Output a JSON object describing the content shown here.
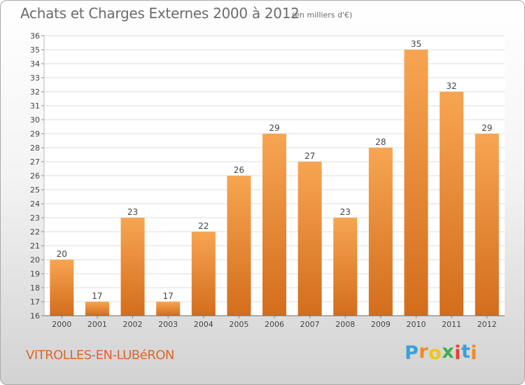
{
  "chart_data": {
    "type": "bar",
    "title": "Achats et Charges Externes 2000 à 2012",
    "subtitle": "(en milliers d'€)",
    "categories": [
      "2000",
      "2001",
      "2002",
      "2003",
      "2004",
      "2005",
      "2006",
      "2007",
      "2008",
      "2009",
      "2010",
      "2011",
      "2012"
    ],
    "values": [
      20,
      17,
      23,
      17,
      22,
      26,
      29,
      27,
      23,
      28,
      35,
      32,
      29
    ],
    "xlabel": "",
    "ylabel": "",
    "ylim": [
      16,
      36
    ],
    "ytick_step": 1,
    "grid": true,
    "bar_color_top": "#f7a552",
    "bar_color_bottom": "#d36d1c"
  },
  "footer": {
    "commune": "VITROLLES-EN-LUBéRON",
    "logo_letters": [
      "P",
      "r",
      "o",
      "x",
      "i",
      "t",
      "i"
    ],
    "logo_colors": [
      "#3aa0d8",
      "#f08c1e",
      "#f2c41a",
      "#3fae49",
      "#e8412c",
      "#3aa0d8",
      "#f08c1e"
    ]
  }
}
